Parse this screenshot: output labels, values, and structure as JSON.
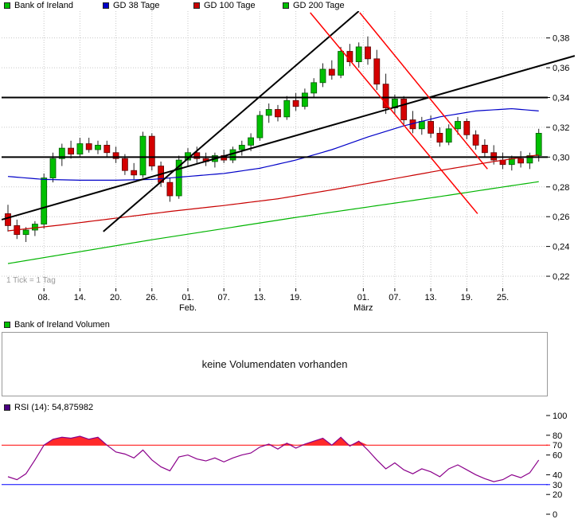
{
  "header_legend": {
    "items": [
      {
        "label": "Bank of Ireland",
        "color": "#00C000"
      },
      {
        "label": "GD 38 Tage",
        "color": "#0000C8"
      },
      {
        "label": "GD 100 Tage",
        "color": "#C80000"
      },
      {
        "label": "GD 200 Tage",
        "color": "#00C000"
      }
    ]
  },
  "main_chart_note": "1 Tick = 1 Tag",
  "volume": {
    "legend_label": "Bank of Ireland Volumen",
    "legend_color": "#00C000",
    "message": "keine Volumendaten vorhanden"
  },
  "rsi_legend": {
    "label": "RSI (14): 54,875982",
    "color": "#4B0082"
  },
  "chart_data": [
    {
      "type": "candlestick",
      "title": "Bank of Ireland",
      "ylim": [
        0.212,
        0.398
      ],
      "y_ticks": [
        0.38,
        0.36,
        0.34,
        0.32,
        0.3,
        0.28,
        0.26,
        0.24,
        0.22
      ],
      "y_tick_labels": [
        "0,38",
        "0,36",
        "0,34",
        "0,32",
        "0,30",
        "0,28",
        "0,26",
        "0,24",
        "0,22"
      ],
      "x_ticks": [
        {
          "label": "08.",
          "i": 4
        },
        {
          "label": "14.",
          "i": 8
        },
        {
          "label": "20.",
          "i": 12
        },
        {
          "label": "26.",
          "i": 16
        },
        {
          "label": "01.",
          "i": 20,
          "sub": "Feb."
        },
        {
          "label": "07.",
          "i": 24
        },
        {
          "label": "13.",
          "i": 28
        },
        {
          "label": "19.",
          "i": 32
        },
        {
          "label": "01.",
          "i": 39.5,
          "sub": "März"
        },
        {
          "label": "07.",
          "i": 43
        },
        {
          "label": "13.",
          "i": 47
        },
        {
          "label": "19.",
          "i": 51
        },
        {
          "label": "25.",
          "i": 55
        }
      ],
      "colors": {
        "up": "#00C000",
        "down": "#D40000",
        "up_border": "#045804",
        "down_border": "#5d0404",
        "wick": "#222222"
      },
      "candles": [
        [
          0.262,
          0.268,
          0.25,
          0.254
        ],
        [
          0.254,
          0.258,
          0.245,
          0.248
        ],
        [
          0.248,
          0.253,
          0.243,
          0.251
        ],
        [
          0.251,
          0.257,
          0.247,
          0.255
        ],
        [
          0.255,
          0.289,
          0.252,
          0.286
        ],
        [
          0.286,
          0.303,
          0.283,
          0.299
        ],
        [
          0.299,
          0.309,
          0.294,
          0.306
        ],
        [
          0.306,
          0.311,
          0.299,
          0.302
        ],
        [
          0.302,
          0.313,
          0.3,
          0.309
        ],
        [
          0.309,
          0.313,
          0.303,
          0.305
        ],
        [
          0.305,
          0.311,
          0.302,
          0.308
        ],
        [
          0.308,
          0.311,
          0.3,
          0.303
        ],
        [
          0.303,
          0.307,
          0.296,
          0.299
        ],
        [
          0.299,
          0.302,
          0.288,
          0.291
        ],
        [
          0.291,
          0.296,
          0.285,
          0.288
        ],
        [
          0.288,
          0.317,
          0.286,
          0.314
        ],
        [
          0.314,
          0.316,
          0.291,
          0.294
        ],
        [
          0.294,
          0.297,
          0.28,
          0.283
        ],
        [
          0.283,
          0.286,
          0.27,
          0.274
        ],
        [
          0.274,
          0.301,
          0.272,
          0.298
        ],
        [
          0.298,
          0.306,
          0.294,
          0.303
        ],
        [
          0.303,
          0.307,
          0.296,
          0.299
        ],
        [
          0.299,
          0.303,
          0.294,
          0.297
        ],
        [
          0.297,
          0.303,
          0.293,
          0.301
        ],
        [
          0.301,
          0.305,
          0.296,
          0.298
        ],
        [
          0.298,
          0.307,
          0.296,
          0.305
        ],
        [
          0.305,
          0.311,
          0.301,
          0.308
        ],
        [
          0.308,
          0.316,
          0.304,
          0.313
        ],
        [
          0.313,
          0.331,
          0.311,
          0.328
        ],
        [
          0.328,
          0.336,
          0.323,
          0.332
        ],
        [
          0.332,
          0.335,
          0.324,
          0.327
        ],
        [
          0.327,
          0.341,
          0.325,
          0.338
        ],
        [
          0.338,
          0.343,
          0.331,
          0.334
        ],
        [
          0.334,
          0.346,
          0.332,
          0.343
        ],
        [
          0.343,
          0.353,
          0.34,
          0.35
        ],
        [
          0.35,
          0.363,
          0.347,
          0.359
        ],
        [
          0.359,
          0.365,
          0.352,
          0.355
        ],
        [
          0.355,
          0.374,
          0.353,
          0.371
        ],
        [
          0.371,
          0.376,
          0.361,
          0.364
        ],
        [
          0.364,
          0.377,
          0.36,
          0.374
        ],
        [
          0.374,
          0.381,
          0.362,
          0.366
        ],
        [
          0.366,
          0.372,
          0.345,
          0.349
        ],
        [
          0.349,
          0.356,
          0.329,
          0.333
        ],
        [
          0.333,
          0.342,
          0.329,
          0.339
        ],
        [
          0.339,
          0.341,
          0.321,
          0.325
        ],
        [
          0.325,
          0.331,
          0.316,
          0.319
        ],
        [
          0.319,
          0.327,
          0.315,
          0.324
        ],
        [
          0.324,
          0.328,
          0.313,
          0.316
        ],
        [
          0.316,
          0.32,
          0.307,
          0.31
        ],
        [
          0.31,
          0.322,
          0.308,
          0.319
        ],
        [
          0.319,
          0.327,
          0.315,
          0.324
        ],
        [
          0.324,
          0.326,
          0.312,
          0.315
        ],
        [
          0.315,
          0.318,
          0.305,
          0.308
        ],
        [
          0.308,
          0.312,
          0.3,
          0.303
        ],
        [
          0.303,
          0.308,
          0.295,
          0.298
        ],
        [
          0.298,
          0.303,
          0.292,
          0.295
        ],
        [
          0.295,
          0.301,
          0.291,
          0.299
        ],
        [
          0.299,
          0.304,
          0.293,
          0.296
        ],
        [
          0.296,
          0.303,
          0.292,
          0.301
        ],
        [
          0.301,
          0.319,
          0.297,
          0.316
        ]
      ],
      "moving_averages": [
        {
          "name": "GD 38 Tage",
          "color": "#0000C8",
          "anchors": [
            [
              0,
              0.287
            ],
            [
              4,
              0.285
            ],
            [
              8,
              0.2845
            ],
            [
              12,
              0.2845
            ],
            [
              16,
              0.285
            ],
            [
              20,
              0.287
            ],
            [
              24,
              0.289
            ],
            [
              28,
              0.2925
            ],
            [
              32,
              0.298
            ],
            [
              36,
              0.305
            ],
            [
              40,
              0.3135
            ],
            [
              44,
              0.321
            ],
            [
              48,
              0.327
            ],
            [
              52,
              0.331
            ],
            [
              56,
              0.3325
            ],
            [
              59,
              0.331
            ]
          ]
        },
        {
          "name": "GD 100 Tage",
          "color": "#C80000",
          "anchors": [
            [
              0,
              0.2505
            ],
            [
              6,
              0.2545
            ],
            [
              12,
              0.259
            ],
            [
              18,
              0.2635
            ],
            [
              24,
              0.2675
            ],
            [
              30,
              0.272
            ],
            [
              36,
              0.278
            ],
            [
              42,
              0.2845
            ],
            [
              48,
              0.291
            ],
            [
              54,
              0.297
            ],
            [
              59,
              0.3015
            ]
          ]
        },
        {
          "name": "GD 200 Tage",
          "color": "#00B400",
          "anchors": [
            [
              0,
              0.2285
            ],
            [
              8,
              0.2365
            ],
            [
              16,
              0.2445
            ],
            [
              24,
              0.252
            ],
            [
              32,
              0.2595
            ],
            [
              40,
              0.2665
            ],
            [
              48,
              0.2735
            ],
            [
              54,
              0.279
            ],
            [
              59,
              0.2835
            ]
          ]
        }
      ],
      "horizontal_lines": [
        {
          "price": 0.34,
          "color": "#000000",
          "width": 2
        },
        {
          "price": 0.3,
          "color": "#000000",
          "width": 2
        }
      ],
      "trendlines": [
        {
          "color": "#000000",
          "width": 2,
          "from": [
            -0.7,
            0.258
          ],
          "to": [
            63,
            0.368
          ]
        },
        {
          "color": "#000000",
          "width": 2,
          "from": [
            10.6,
            0.25
          ],
          "to": [
            39,
            0.398
          ]
        },
        {
          "color": "#FF0000",
          "width": 1.5,
          "from": [
            33.6,
            0.397
          ],
          "to": [
            52.2,
            0.262
          ]
        },
        {
          "color": "#FF0000",
          "width": 1.5,
          "from": [
            39.1,
            0.397
          ],
          "to": [
            53.3,
            0.292
          ]
        }
      ]
    },
    {
      "type": "line",
      "title": "RSI (14)",
      "current_value": 54.875982,
      "ylim": [
        0,
        100
      ],
      "y_ticks": [
        {
          "value": 100,
          "label": "100",
          "color": "#000000"
        },
        {
          "value": 80,
          "label": "80",
          "color": "#000000"
        },
        {
          "value": 70,
          "label": "70",
          "color": "#FF0000"
        },
        {
          "value": 60,
          "label": "60",
          "color": "#000000"
        },
        {
          "value": 40,
          "label": "40",
          "color": "#000000"
        },
        {
          "value": 30,
          "label": "30",
          "color": "#0000FF"
        },
        {
          "value": 20,
          "label": "20",
          "color": "#000000"
        },
        {
          "value": 0,
          "label": "0",
          "color": "#000000"
        }
      ],
      "guides": [
        {
          "value": 70,
          "color": "#FF0000"
        },
        {
          "value": 30,
          "color": "#0000FF"
        }
      ],
      "line_color": "#8B008B",
      "fill_above_guide_color": "#FF2A2A",
      "overbought": 70,
      "values": [
        38,
        35,
        41,
        55,
        70,
        76,
        78,
        77,
        79,
        76,
        78,
        70,
        63,
        61,
        57,
        65,
        55,
        48,
        44,
        58,
        60,
        56,
        54,
        57,
        53,
        57,
        60,
        62,
        68,
        71,
        66,
        72,
        67,
        71,
        74,
        77,
        70,
        78,
        69,
        74,
        65,
        55,
        46,
        52,
        45,
        41,
        46,
        43,
        38,
        46,
        50,
        45,
        40,
        36,
        33,
        35,
        40,
        37,
        42,
        54.875982
      ]
    },
    {
      "type": "bar",
      "title": "Bank of Ireland Volumen",
      "values": [],
      "message": "keine Volumendaten vorhanden"
    }
  ]
}
